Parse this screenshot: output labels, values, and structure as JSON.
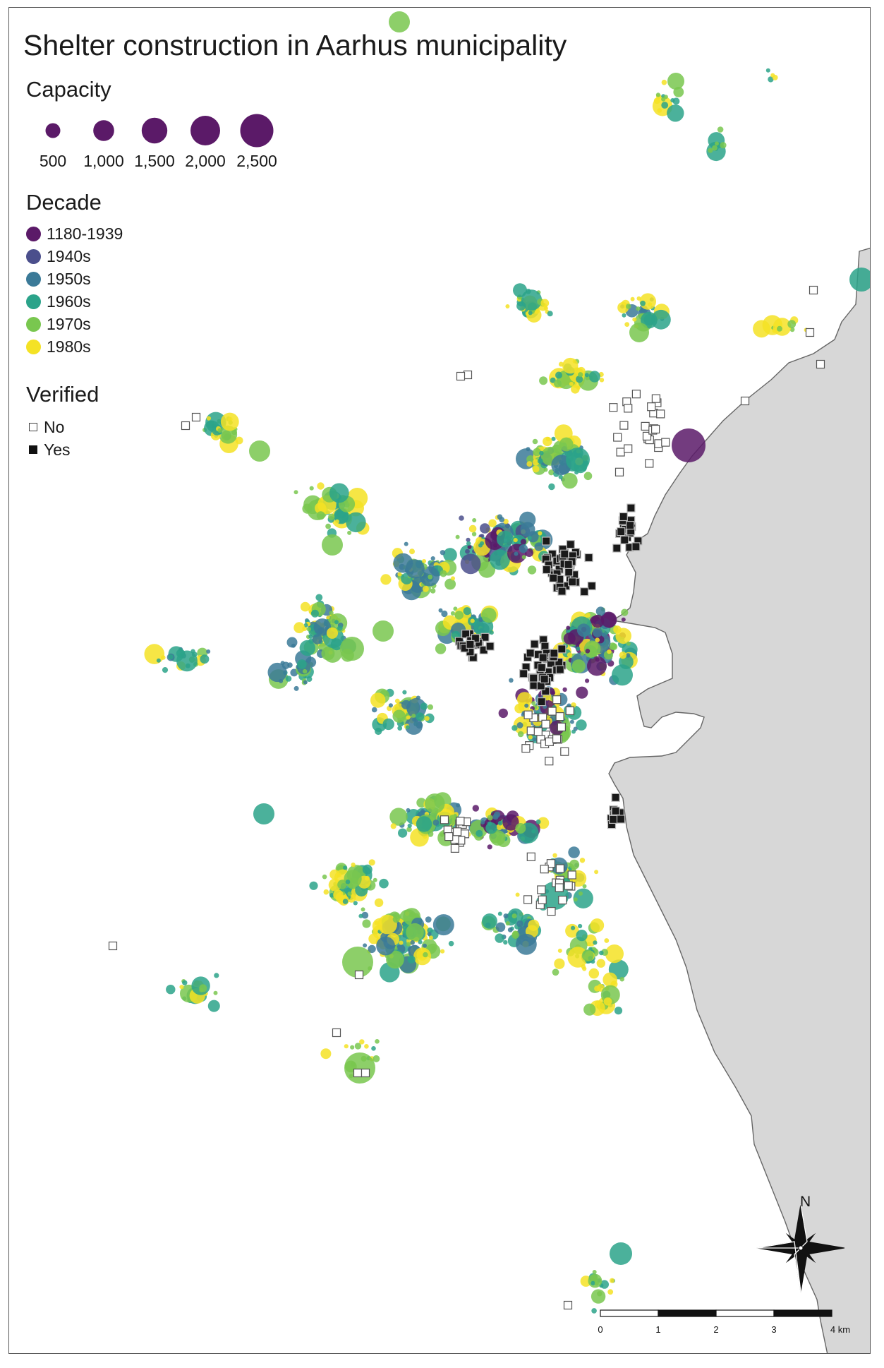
{
  "title": "Shelter construction in Aarhus municipality",
  "legend": {
    "capacity": {
      "heading": "Capacity",
      "color": "#5b1a68",
      "items": [
        {
          "label": "500",
          "value": 500
        },
        {
          "label": "1,000",
          "value": 1000
        },
        {
          "label": "1,500",
          "value": 1500
        },
        {
          "label": "2,000",
          "value": 2000
        },
        {
          "label": "2,500",
          "value": 2500
        }
      ]
    },
    "decade": {
      "heading": "Decade",
      "items": [
        {
          "label": "1180-1939",
          "color": "#5b1a68"
        },
        {
          "label": "1940s",
          "color": "#4b4f8c"
        },
        {
          "label": "1950s",
          "color": "#3b7a98"
        },
        {
          "label": "1960s",
          "color": "#2ba38a"
        },
        {
          "label": "1970s",
          "color": "#79c74f"
        },
        {
          "label": "1980s",
          "color": "#f4e225"
        }
      ]
    },
    "verified": {
      "heading": "Verified",
      "items": [
        {
          "label": "No",
          "style": "hollow-square"
        },
        {
          "label": "Yes",
          "style": "filled-square"
        }
      ]
    }
  },
  "scale_bar": {
    "labels": [
      "0",
      "1",
      "2",
      "3",
      "4 km"
    ]
  },
  "north_arrow": {
    "label": "N"
  },
  "colors": {
    "sea": "#d7d7d7",
    "coastline": "#666666",
    "frame": "#555555"
  }
}
